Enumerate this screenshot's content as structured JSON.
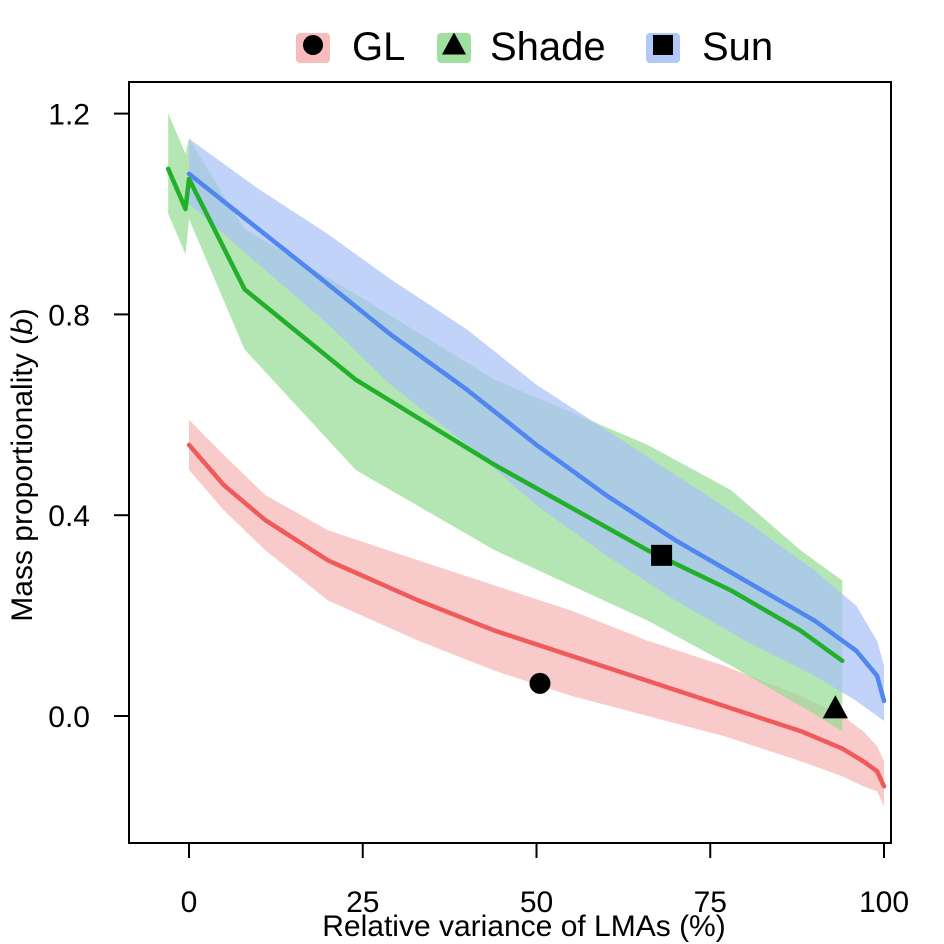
{
  "chart_data": {
    "type": "line",
    "title": "",
    "xlabel": "Relative variance of LMAs (%)",
    "ylabel": {
      "prefix": "Mass proportionality (",
      "symbol": "b",
      "suffix": ")"
    },
    "xlim": [
      -8,
      101
    ],
    "ylim": [
      -0.25,
      1.27
    ],
    "x_ticks": [
      {
        "value": 0,
        "label": "0"
      },
      {
        "value": 25,
        "label": "25"
      },
      {
        "value": 50,
        "label": "50"
      },
      {
        "value": 75,
        "label": "75"
      },
      {
        "value": 100,
        "label": "100"
      }
    ],
    "y_ticks": [
      {
        "value": 0.0,
        "label": "0.0"
      },
      {
        "value": 0.4,
        "label": "0.4"
      },
      {
        "value": 0.8,
        "label": "0.8"
      },
      {
        "value": 1.2,
        "label": "1.2"
      }
    ],
    "grid": false,
    "legend_position": "top",
    "series": [
      {
        "name": "GL",
        "marker": "circle",
        "line_color": "#ef5a5a",
        "band_color": "#f7b5b5",
        "x": [
          0,
          5,
          11,
          20,
          33,
          44,
          55,
          66,
          77,
          88,
          94,
          97,
          99,
          100
        ],
        "y": [
          0.54,
          0.46,
          0.39,
          0.31,
          0.23,
          0.17,
          0.12,
          0.07,
          0.02,
          -0.03,
          -0.065,
          -0.09,
          -0.11,
          -0.14
        ],
        "lower": [
          0.49,
          0.41,
          0.33,
          0.23,
          0.15,
          0.09,
          0.04,
          0.0,
          -0.04,
          -0.09,
          -0.12,
          -0.14,
          -0.15,
          -0.18
        ],
        "upper": [
          0.59,
          0.52,
          0.44,
          0.37,
          0.31,
          0.26,
          0.21,
          0.15,
          0.1,
          0.04,
          0.0,
          -0.03,
          -0.06,
          -0.09
        ],
        "point": {
          "x": 50.5,
          "y": 0.065
        }
      },
      {
        "name": "Shade",
        "marker": "triangle",
        "line_color": "#22b02a",
        "band_color": "#96dc96",
        "x": [
          -3,
          -0.5,
          0,
          8,
          24,
          44,
          66,
          78,
          88,
          94
        ],
        "y": [
          1.09,
          1.01,
          1.07,
          0.85,
          0.67,
          0.5,
          0.33,
          0.25,
          0.17,
          0.11
        ],
        "lower": [
          1.0,
          0.92,
          0.99,
          0.73,
          0.49,
          0.33,
          0.19,
          0.1,
          0.02,
          -0.03
        ],
        "upper": [
          1.2,
          1.12,
          1.15,
          0.97,
          0.84,
          0.67,
          0.54,
          0.45,
          0.33,
          0.27
        ],
        "point": {
          "x": 93,
          "y": 0.015
        }
      },
      {
        "name": "Sun",
        "marker": "square",
        "line_color": "#4f86f0",
        "band_color": "#a9c2f7",
        "x": [
          0,
          10,
          20,
          29,
          40,
          50,
          60,
          70,
          80,
          90,
          96,
          99,
          100
        ],
        "y": [
          1.08,
          0.97,
          0.86,
          0.76,
          0.65,
          0.54,
          0.44,
          0.35,
          0.27,
          0.19,
          0.13,
          0.08,
          0.03
        ],
        "lower": [
          1.02,
          0.9,
          0.78,
          0.66,
          0.54,
          0.42,
          0.32,
          0.23,
          0.15,
          0.08,
          0.03,
          0.0,
          -0.01
        ],
        "upper": [
          1.15,
          1.05,
          0.96,
          0.87,
          0.77,
          0.66,
          0.57,
          0.48,
          0.39,
          0.29,
          0.22,
          0.15,
          0.1
        ],
        "point": {
          "x": 68,
          "y": 0.32
        }
      }
    ]
  }
}
